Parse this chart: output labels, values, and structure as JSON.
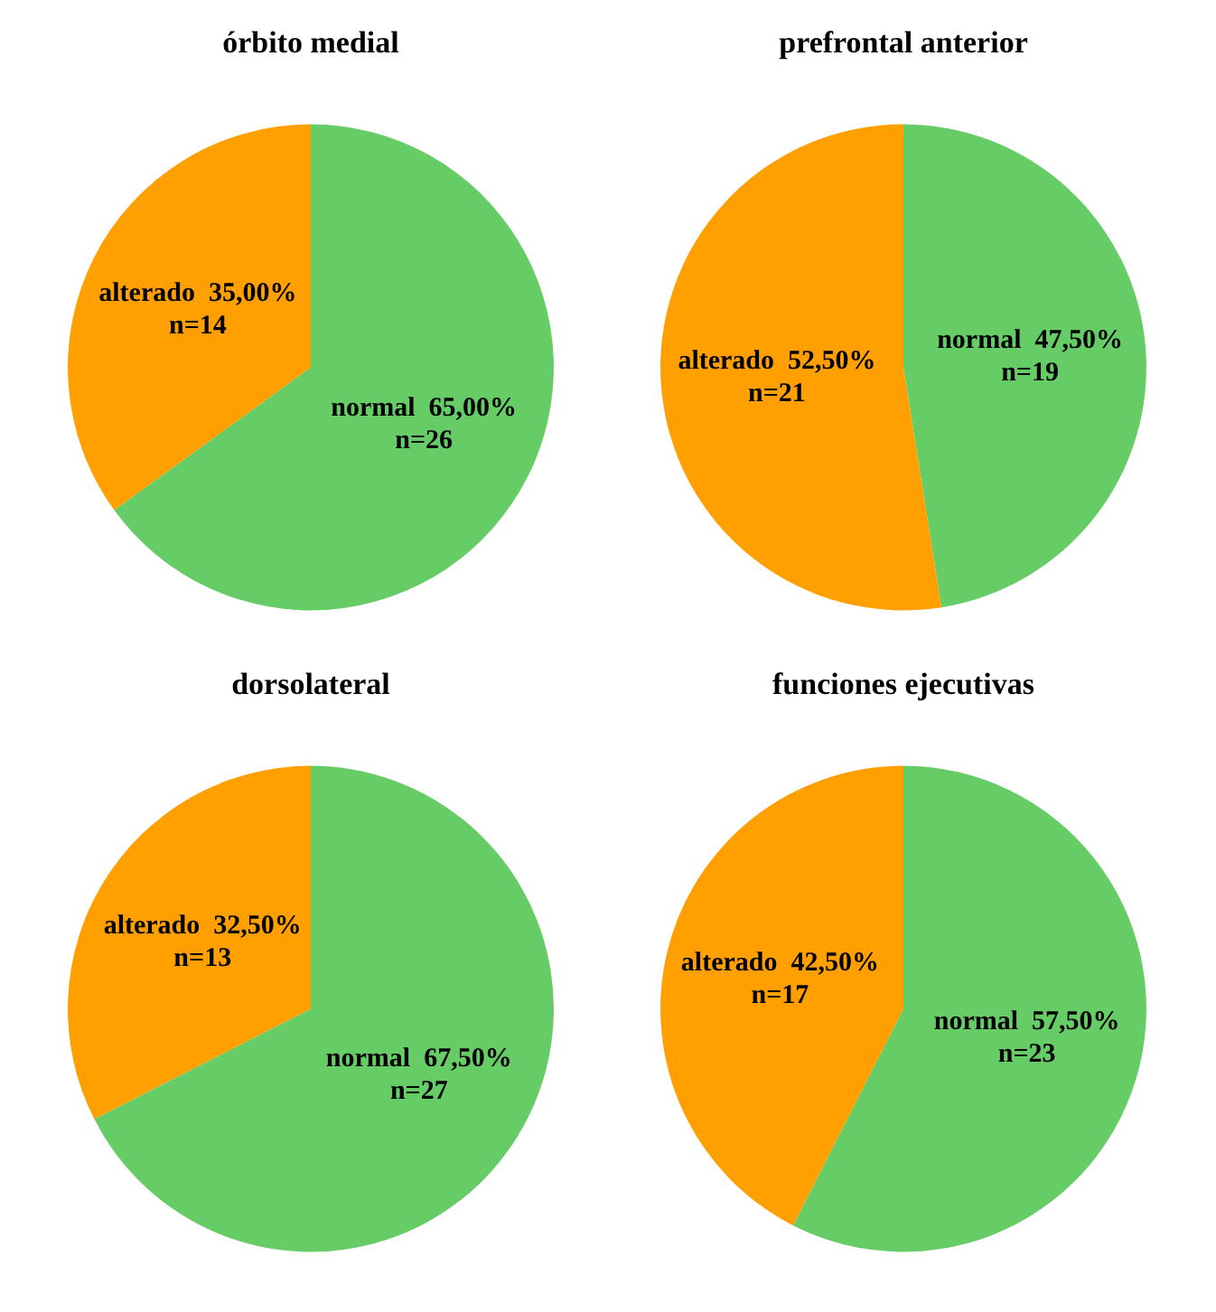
{
  "chart_data": [
    {
      "type": "pie",
      "title": "órbito medial",
      "categories": [
        "normal",
        "alterado"
      ],
      "values": [
        26,
        14
      ],
      "colors": [
        "#66cc66",
        "#ff9f00"
      ],
      "value_labels": [
        "65,00%\nn=26",
        "35,00%\nn=14"
      ],
      "legend": false
    },
    {
      "type": "pie",
      "title": "prefrontal anterior",
      "categories": [
        "normal",
        "alterado"
      ],
      "values": [
        19,
        21
      ],
      "colors": [
        "#66cc66",
        "#ff9f00"
      ],
      "value_labels": [
        "47,50%\nn=19",
        "52,50%\nn=21"
      ],
      "legend": false
    },
    {
      "type": "pie",
      "title": "dorsolateral",
      "categories": [
        "normal",
        "alterado"
      ],
      "values": [
        27,
        13
      ],
      "colors": [
        "#66cc66",
        "#ff9f00"
      ],
      "value_labels": [
        "67,50%\nn=27",
        "32,50%\nn=13"
      ],
      "legend": false
    },
    {
      "type": "pie",
      "title": "funciones ejecutivas",
      "categories": [
        "normal",
        "alterado"
      ],
      "values": [
        23,
        17
      ],
      "colors": [
        "#66cc66",
        "#ff9f00"
      ],
      "value_labels": [
        "57,50%\nn=23",
        "42,50%\nn=17"
      ],
      "legend": false
    }
  ]
}
